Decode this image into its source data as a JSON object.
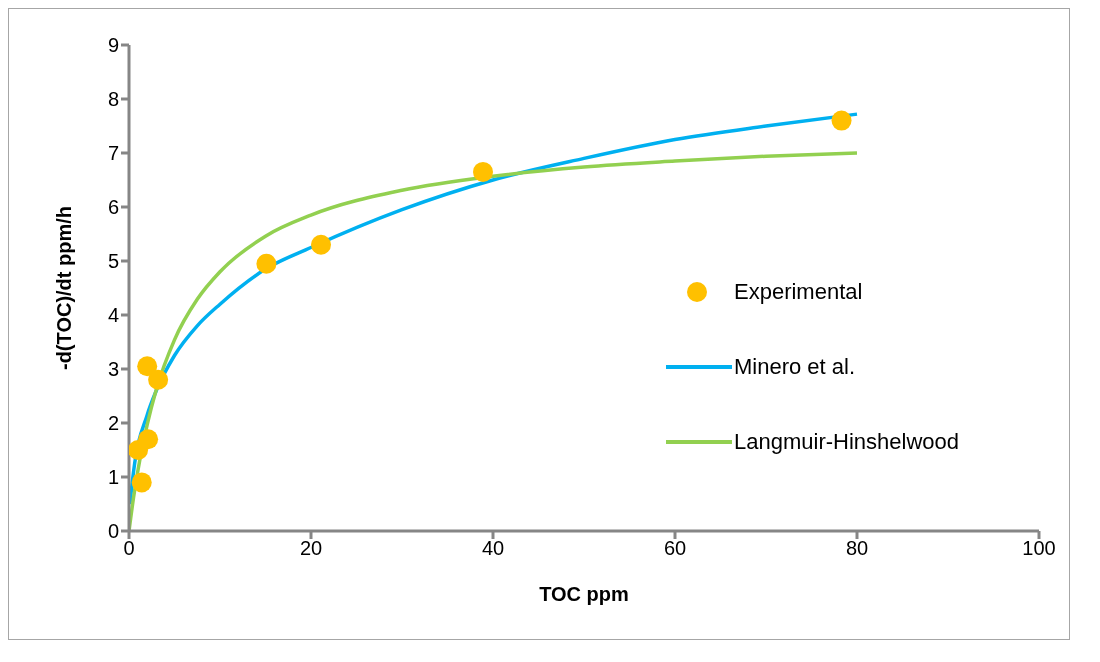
{
  "chart_data": {
    "type": "line",
    "xlabel": "TOC ppm",
    "ylabel": "-d(TOC)/dt   ppm/h",
    "xlim": [
      0,
      100
    ],
    "xticks": [
      0,
      20,
      40,
      60,
      80,
      100
    ],
    "ylim": [
      0,
      9
    ],
    "yticks": [
      0,
      1,
      2,
      3,
      4,
      5,
      6,
      7,
      8,
      9
    ],
    "grid": false,
    "legend": "right",
    "series": [
      {
        "name": "Experimental",
        "type": "scatter",
        "marker": "circle",
        "color": "#ffc000",
        "x": [
          1.0,
          1.4,
          2.1,
          2.0,
          3.2,
          15.1,
          21.1,
          38.9,
          78.3
        ],
        "values": [
          1.5,
          0.9,
          1.7,
          3.05,
          2.8,
          4.95,
          5.3,
          6.65,
          7.6
        ]
      },
      {
        "name": "Minero et al.",
        "type": "line",
        "color": "#00b0f0",
        "x": [
          0.1,
          0.5,
          2,
          3,
          5,
          7.5,
          10,
          15,
          20,
          30,
          40,
          50,
          60,
          70,
          80
        ],
        "values": [
          0.5,
          1.1,
          2.15,
          2.6,
          3.25,
          3.8,
          4.2,
          4.85,
          5.25,
          5.95,
          6.5,
          6.9,
          7.25,
          7.5,
          7.72
        ]
      },
      {
        "name": "Langmuir-Hinshelwood",
        "type": "line",
        "color": "#92d050",
        "x": [
          0,
          0.5,
          1,
          2,
          3,
          5,
          7.5,
          10,
          15,
          20,
          30,
          40,
          50,
          60,
          70,
          80
        ],
        "values": [
          0,
          0.62,
          1.14,
          1.97,
          2.62,
          3.54,
          4.29,
          4.8,
          5.46,
          5.85,
          6.31,
          6.57,
          6.74,
          6.85,
          6.94,
          7.0
        ]
      }
    ]
  }
}
